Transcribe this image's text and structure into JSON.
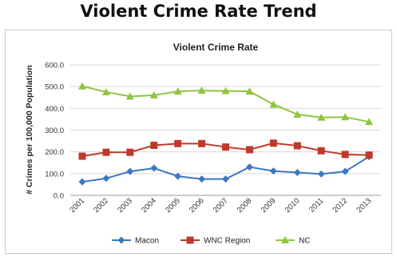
{
  "page": {
    "heading": "Violent Crime Rate Trend"
  },
  "chart_data": {
    "type": "line",
    "title": "Violent Crime Rate",
    "xlabel": "",
    "ylabel": "# Crimes per 100,000 Population",
    "categories": [
      "2001",
      "2002",
      "2003",
      "2004",
      "2005",
      "2006",
      "2007",
      "2008",
      "2009",
      "2010",
      "2011",
      "2012",
      "2013"
    ],
    "ylim": [
      0,
      600
    ],
    "yticks": [
      0,
      100,
      200,
      300,
      400,
      500,
      600
    ],
    "ytick_labels": [
      "0.0",
      "100.0",
      "200.0",
      "300.0",
      "400.0",
      "500.0",
      "600.0"
    ],
    "grid": true,
    "legend_position": "bottom",
    "series": [
      {
        "name": "Macon",
        "color": "#3c78c0",
        "marker": "diamond",
        "values": [
          62,
          78,
          110,
          125,
          88,
          75,
          75,
          130,
          112,
          105,
          98,
          110,
          178
        ]
      },
      {
        "name": "WNC Region",
        "color": "#c0392b",
        "marker": "square",
        "values": [
          180,
          198,
          198,
          230,
          238,
          238,
          222,
          210,
          240,
          228,
          205,
          188,
          185
        ]
      },
      {
        "name": "NC",
        "color": "#8dc63f",
        "marker": "triangle",
        "values": [
          502,
          475,
          455,
          460,
          478,
          482,
          480,
          478,
          418,
          372,
          358,
          360,
          338
        ]
      }
    ]
  }
}
